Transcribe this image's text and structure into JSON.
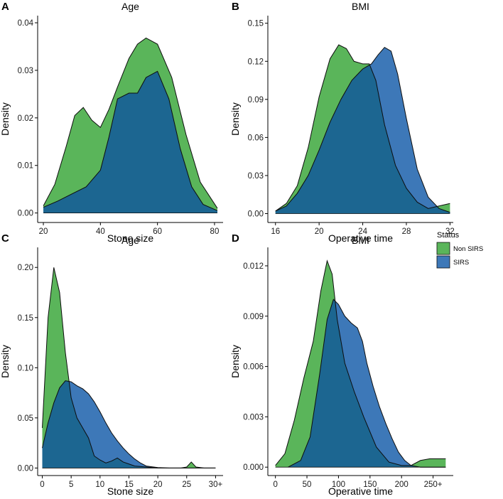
{
  "colors": {
    "non_sirs": "#5ab55a",
    "sirs": "#3d78b8",
    "overlap": "#1c6691",
    "outline": "#0d0d0d"
  },
  "legend": {
    "title": "Status",
    "items": [
      {
        "label": "Non SIRS",
        "color": "#5ab55a"
      },
      {
        "label": "SIRS",
        "color": "#3d78b8"
      }
    ]
  },
  "chart_data": [
    {
      "type": "area",
      "panel": "A",
      "title": "Age",
      "xlabel": "Age",
      "ylabel": "Density",
      "xlim": [
        18,
        83
      ],
      "ylim": [
        -0.002,
        0.0415
      ],
      "xticks": [
        20,
        40,
        60,
        80
      ],
      "xtick_labels": [
        "20",
        "40",
        "60",
        "80"
      ],
      "yticks": [
        0,
        0.01,
        0.02,
        0.03,
        0.04
      ],
      "ytick_labels": [
        "0.00",
        "0.01",
        "0.02",
        "0.03",
        "0.04"
      ],
      "series": [
        {
          "name": "Non SIRS",
          "x": [
            20,
            24,
            28,
            31,
            34,
            37,
            40,
            43,
            46,
            50,
            53,
            56,
            60,
            65,
            70,
            75,
            81
          ],
          "y": [
            0.0015,
            0.006,
            0.014,
            0.0205,
            0.0222,
            0.0195,
            0.018,
            0.0218,
            0.0265,
            0.0325,
            0.0355,
            0.0368,
            0.0355,
            0.0285,
            0.0165,
            0.0065,
            0.001
          ]
        },
        {
          "name": "SIRS",
          "x": [
            20,
            25,
            30,
            35,
            40,
            43,
            46,
            50,
            53,
            56,
            60,
            64,
            68,
            72,
            76,
            81
          ],
          "y": [
            0.0012,
            0.0025,
            0.004,
            0.0055,
            0.009,
            0.016,
            0.024,
            0.0252,
            0.0252,
            0.0285,
            0.0298,
            0.024,
            0.0135,
            0.0055,
            0.0018,
            0.0005
          ]
        }
      ]
    },
    {
      "type": "area",
      "panel": "B",
      "title": "BMI",
      "xlabel": "BMI",
      "ylabel": "Density",
      "xlim": [
        15.3,
        32.3
      ],
      "ylim": [
        -0.007,
        0.156
      ],
      "xticks": [
        16,
        20,
        24,
        28,
        32
      ],
      "xtick_labels": [
        "16",
        "20",
        "24",
        "28",
        "32"
      ],
      "yticks": [
        0,
        0.03,
        0.06,
        0.09,
        0.12,
        0.15
      ],
      "ytick_labels": [
        "0.00",
        "0.03",
        "0.06",
        "0.09",
        "0.12",
        "0.15"
      ],
      "series": [
        {
          "name": "Non SIRS",
          "x": [
            16,
            17,
            18,
            19,
            20,
            21,
            21.8,
            22.5,
            23.2,
            24,
            24.6,
            25.2,
            26,
            27,
            28,
            29,
            30,
            31,
            32
          ],
          "y": [
            0.002,
            0.008,
            0.022,
            0.052,
            0.092,
            0.122,
            0.133,
            0.13,
            0.12,
            0.118,
            0.118,
            0.105,
            0.07,
            0.038,
            0.02,
            0.009,
            0.004,
            0.006,
            0.008
          ]
        },
        {
          "name": "SIRS",
          "x": [
            16,
            17,
            18,
            19,
            20,
            21,
            22,
            23,
            24,
            24.8,
            25.4,
            26,
            26.6,
            27.2,
            28,
            29,
            30,
            31,
            32
          ],
          "y": [
            0.002,
            0.006,
            0.016,
            0.03,
            0.05,
            0.072,
            0.09,
            0.105,
            0.114,
            0.118,
            0.125,
            0.131,
            0.128,
            0.11,
            0.075,
            0.035,
            0.013,
            0.004,
            0.001
          ]
        }
      ]
    },
    {
      "type": "area",
      "panel": "C",
      "title": "Stone size",
      "xlabel": "Stone size",
      "ylabel": "Density",
      "xlim": [
        -0.8,
        31.3
      ],
      "ylim": [
        -0.0075,
        0.22
      ],
      "xticks": [
        0,
        5,
        10,
        15,
        20,
        25,
        30
      ],
      "xtick_labels": [
        "0",
        "5",
        "10",
        "15",
        "20",
        "25",
        "30+"
      ],
      "yticks": [
        0,
        0.05,
        0.1,
        0.15,
        0.2
      ],
      "ytick_labels": [
        "0.00",
        "0.05",
        "0.10",
        "0.15",
        "0.20"
      ],
      "series": [
        {
          "name": "Non SIRS",
          "x": [
            0,
            1,
            2,
            3,
            4,
            5,
            6,
            7,
            8,
            9,
            10,
            11,
            12,
            13,
            14,
            15,
            16,
            18,
            20,
            22,
            24,
            25,
            25.8,
            26.6,
            28,
            30
          ],
          "y": [
            0.04,
            0.15,
            0.2,
            0.175,
            0.115,
            0.07,
            0.05,
            0.04,
            0.03,
            0.012,
            0.008,
            0.005,
            0.007,
            0.01,
            0.006,
            0.004,
            0.002,
            0.001,
            0.0,
            0.0,
            0.0,
            0.001,
            0.006,
            0.001,
            0.0,
            0.0
          ]
        },
        {
          "name": "SIRS",
          "x": [
            0,
            1,
            2,
            3,
            4,
            5,
            6,
            7,
            8,
            9,
            10,
            11,
            12,
            13,
            14,
            15,
            16,
            17,
            18,
            20,
            22,
            25,
            30
          ],
          "y": [
            0.02,
            0.045,
            0.065,
            0.08,
            0.087,
            0.086,
            0.082,
            0.079,
            0.074,
            0.066,
            0.056,
            0.045,
            0.035,
            0.027,
            0.02,
            0.014,
            0.009,
            0.005,
            0.002,
            0.0005,
            0.0,
            0.0,
            0.0
          ]
        }
      ]
    },
    {
      "type": "area",
      "panel": "D",
      "title": "Operative time",
      "xlabel": "Operative time",
      "ylabel": "Density",
      "xlim": [
        -12,
        282
      ],
      "ylim": [
        -0.0005,
        0.0131
      ],
      "xticks": [
        0,
        50,
        100,
        150,
        200,
        250
      ],
      "xtick_labels": [
        "0",
        "50",
        "100",
        "150",
        "200",
        "250+"
      ],
      "yticks": [
        0,
        0.003,
        0.006,
        0.009,
        0.012
      ],
      "ytick_labels": [
        "0.000",
        "0.003",
        "0.006",
        "0.009",
        "0.012"
      ],
      "series": [
        {
          "name": "Non SIRS",
          "x": [
            0,
            15,
            30,
            45,
            60,
            72,
            82,
            90,
            98,
            110,
            125,
            140,
            160,
            180,
            200,
            215,
            230,
            245,
            260,
            270
          ],
          "y": [
            0.0001,
            0.0008,
            0.0028,
            0.0053,
            0.0075,
            0.0105,
            0.0123,
            0.0115,
            0.0088,
            0.0062,
            0.0045,
            0.003,
            0.0012,
            0.0003,
            0.0001,
            0.0001,
            0.0004,
            0.0005,
            0.0005,
            0.0005
          ]
        },
        {
          "name": "SIRS",
          "x": [
            20,
            40,
            55,
            70,
            82,
            92,
            100,
            110,
            120,
            130,
            138,
            145,
            155,
            165,
            175,
            185,
            195,
            205,
            215,
            230,
            250,
            270
          ],
          "y": [
            0.0,
            0.0004,
            0.0018,
            0.0055,
            0.0088,
            0.01,
            0.0097,
            0.009,
            0.0086,
            0.0083,
            0.0075,
            0.0062,
            0.0048,
            0.0036,
            0.0026,
            0.0017,
            0.0009,
            0.0004,
            0.0001,
            0.0,
            0.0,
            0.0
          ]
        }
      ]
    }
  ]
}
